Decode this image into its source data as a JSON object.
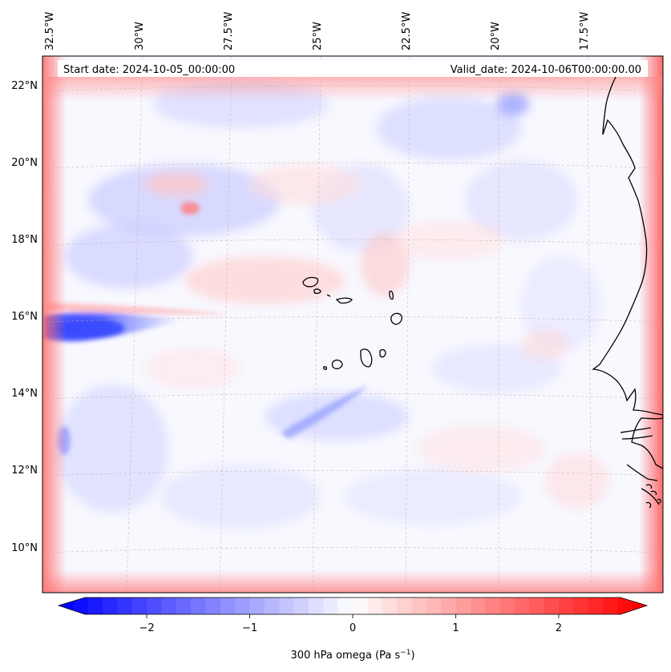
{
  "header": {
    "start_date": "Start date: 2024-10-05_00:00:00",
    "valid_date": "Valid_date: 2024-10-06T00:00:00.00"
  },
  "map": {
    "lon_labels": [
      "32.5°W",
      "30°W",
      "27.5°W",
      "25°W",
      "22.5°W",
      "20°W",
      "17.5°W"
    ],
    "lat_labels": [
      "22°N",
      "20°N",
      "18°N",
      "16°N",
      "14°N",
      "12°N",
      "10°N"
    ],
    "lon_range": [
      -32.8,
      -15.4
    ],
    "lat_range": [
      8.9,
      22.7
    ],
    "gridlines": true,
    "field_colors": {
      "negative": "#0000ff",
      "neutral": "#f8f8ff",
      "positive": "#ff0000"
    }
  },
  "colorbar": {
    "label_prefix": "300 hPa omega (Pa s",
    "label_sup": "−1",
    "label_suffix": ")",
    "ticks": [
      "−2",
      "−1",
      "0",
      "1",
      "2"
    ],
    "tick_values": [
      -2,
      -1,
      0,
      1,
      2
    ],
    "range": [
      -2.6,
      2.6
    ],
    "extend": "both"
  }
}
